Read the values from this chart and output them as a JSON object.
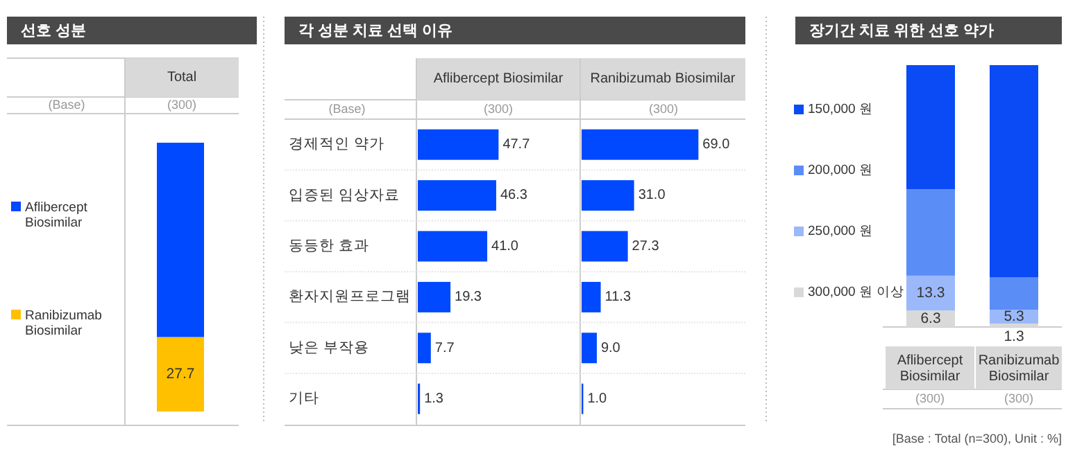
{
  "chart_data": [
    {
      "type": "bar",
      "stacked": true,
      "title": "선호 성분",
      "categories": [
        "Total"
      ],
      "legend": "left",
      "annotations": [
        "(Base)",
        "(300)"
      ],
      "series": [
        {
          "name": "Ranibizumab Biosimilar",
          "color": "#ffc000",
          "values": [
            27.7
          ],
          "value_labels": [
            "27.7"
          ]
        },
        {
          "name": "Aflibercept Biosimilar",
          "color": "#0049ff",
          "values": [
            72.3
          ],
          "value_labels": [
            null
          ]
        }
      ]
    },
    {
      "type": "bar",
      "orientation": "horizontal",
      "title": "각 성분 치료 선택 이유",
      "subtitle": "Aflibercept Biosimilar",
      "categories": [
        "경제적인 약가",
        "입증된 임상자료",
        "동등한 효과",
        "환자지원프로그램",
        "낮은 부작용",
        "기타"
      ],
      "tick_labels": "y",
      "annotations": [
        "(Base)",
        "(300)"
      ],
      "series": [
        {
          "color": "#0049ff",
          "values": [
            47.7,
            46.3,
            41.0,
            19.3,
            7.7,
            1.3
          ],
          "value_labels": [
            "47.7",
            "46.3",
            "41.0",
            "19.3",
            "7.7",
            "1.3"
          ]
        }
      ]
    },
    {
      "type": "bar",
      "orientation": "horizontal",
      "subtitle": "Ranibizumab Biosimilar",
      "categories": [
        null,
        null,
        null,
        null,
        null,
        null
      ],
      "annotations": [
        "(300)"
      ],
      "series": [
        {
          "color": "#0049ff",
          "values": [
            69.0,
            31.0,
            27.3,
            11.3,
            9.0,
            1.0
          ],
          "value_labels": [
            "69.0",
            "31.0",
            "27.3",
            "11.3",
            "9.0",
            "1.0"
          ]
        }
      ]
    },
    {
      "type": "bar",
      "stacked": true,
      "title": "장기간 치료 위한 선호 약가",
      "categories": [
        "Aflibercept Biosimilar",
        "Ranibizumab Biosimilar"
      ],
      "legend": "left",
      "annotations": [
        "(300)",
        "(300)",
        "[Base : Total (n=300), Unit : %]"
      ],
      "series": [
        {
          "name": "300,000 원 이상",
          "color": "#d9d9d9",
          "values": [
            6.3,
            1.3
          ],
          "value_labels": [
            "6.3",
            "1.3"
          ]
        },
        {
          "name": "250,000 원",
          "color": "#9bb9fa",
          "values": [
            13.3,
            5.3
          ],
          "value_labels": [
            "13.3",
            "5.3"
          ]
        },
        {
          "name": "200,000 원",
          "color": "#5b8df6",
          "values": [
            33.0,
            12.3
          ],
          "value_labels": [
            null,
            null
          ]
        },
        {
          "name": "150,000 원",
          "color": "#0a4bf5",
          "values": [
            47.4,
            81.1
          ],
          "value_labels": [
            null,
            null
          ]
        }
      ]
    }
  ]
}
